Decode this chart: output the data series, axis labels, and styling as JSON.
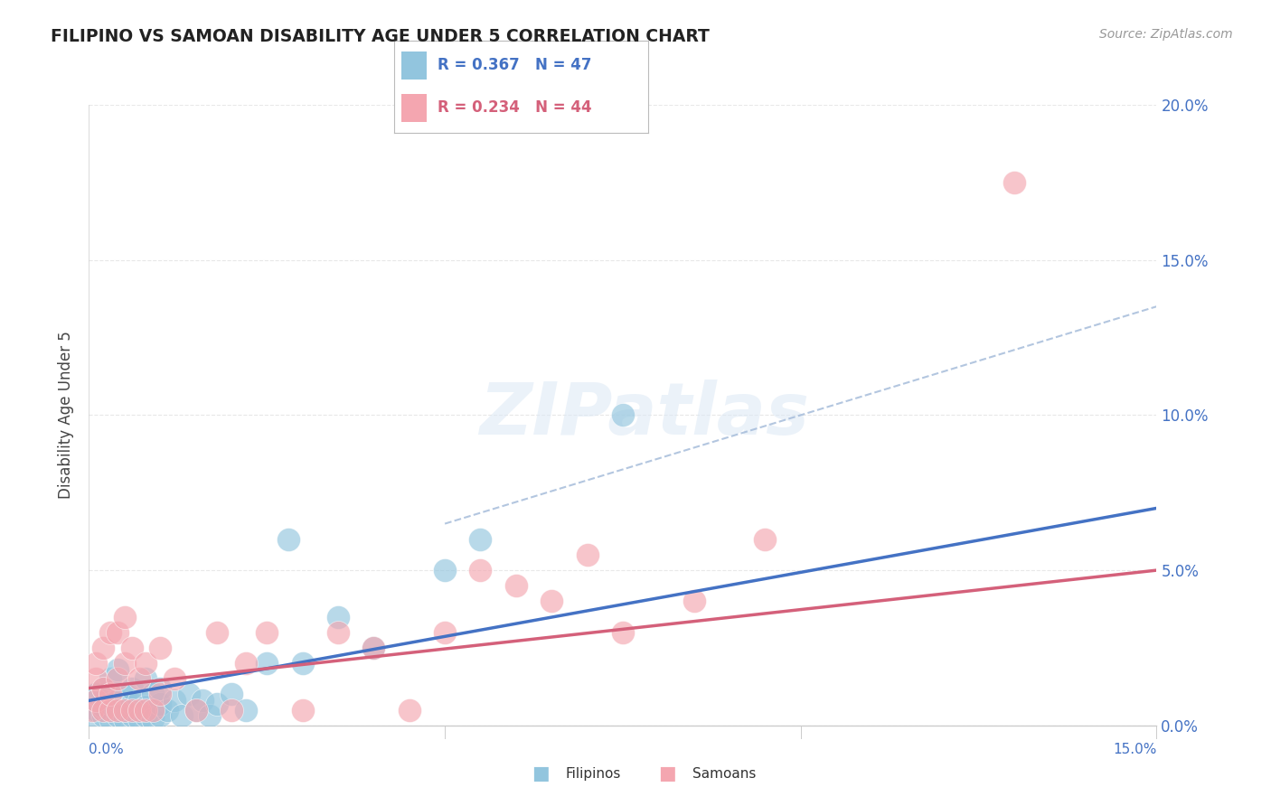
{
  "title": "FILIPINO VS SAMOAN DISABILITY AGE UNDER 5 CORRELATION CHART",
  "source": "Source: ZipAtlas.com",
  "ylabel": "Disability Age Under 5",
  "filipino_R": 0.367,
  "filipino_N": 47,
  "samoan_R": 0.234,
  "samoan_N": 44,
  "filipino_color": "#92c5de",
  "samoan_color": "#f4a6b0",
  "filipino_line_color": "#4472c4",
  "samoan_line_color": "#d4607a",
  "dashed_line_color": "#a0b8d8",
  "background_color": "#ffffff",
  "grid_color": "#e8e8e8",
  "legend_box_color": "#f0f0f0",
  "ytick_color": "#4472c4",
  "xtick_color": "#4472c4",
  "xmin": 0.0,
  "xmax": 0.15,
  "ymin": 0.0,
  "ymax": 0.2,
  "yticks": [
    0.0,
    0.05,
    0.1,
    0.15,
    0.2
  ],
  "ytick_labels": [
    "0.0%",
    "5.0%",
    "10.0%",
    "15.0%",
    "20.0%"
  ],
  "filipino_x": [
    0.0005,
    0.001,
    0.001,
    0.001,
    0.002,
    0.002,
    0.002,
    0.003,
    0.003,
    0.003,
    0.004,
    0.004,
    0.004,
    0.005,
    0.005,
    0.005,
    0.006,
    0.006,
    0.006,
    0.007,
    0.007,
    0.008,
    0.008,
    0.008,
    0.009,
    0.009,
    0.01,
    0.01,
    0.01,
    0.011,
    0.012,
    0.013,
    0.014,
    0.015,
    0.016,
    0.017,
    0.018,
    0.02,
    0.022,
    0.025,
    0.028,
    0.03,
    0.035,
    0.04,
    0.05,
    0.055,
    0.075
  ],
  "filipino_y": [
    0.003,
    0.005,
    0.008,
    0.01,
    0.003,
    0.006,
    0.012,
    0.002,
    0.007,
    0.015,
    0.003,
    0.008,
    0.018,
    0.002,
    0.005,
    0.01,
    0.003,
    0.007,
    0.012,
    0.002,
    0.008,
    0.003,
    0.006,
    0.015,
    0.002,
    0.01,
    0.003,
    0.007,
    0.012,
    0.005,
    0.008,
    0.003,
    0.01,
    0.005,
    0.008,
    0.003,
    0.007,
    0.01,
    0.005,
    0.02,
    0.06,
    0.02,
    0.035,
    0.025,
    0.05,
    0.06,
    0.1
  ],
  "samoan_x": [
    0.0005,
    0.001,
    0.001,
    0.001,
    0.002,
    0.002,
    0.002,
    0.003,
    0.003,
    0.003,
    0.004,
    0.004,
    0.004,
    0.005,
    0.005,
    0.005,
    0.006,
    0.006,
    0.007,
    0.007,
    0.008,
    0.008,
    0.009,
    0.01,
    0.01,
    0.012,
    0.015,
    0.018,
    0.02,
    0.022,
    0.025,
    0.03,
    0.035,
    0.04,
    0.045,
    0.05,
    0.055,
    0.06,
    0.065,
    0.07,
    0.075,
    0.085,
    0.095,
    0.13
  ],
  "samoan_y": [
    0.005,
    0.008,
    0.015,
    0.02,
    0.005,
    0.012,
    0.025,
    0.005,
    0.01,
    0.03,
    0.005,
    0.015,
    0.03,
    0.005,
    0.02,
    0.035,
    0.005,
    0.025,
    0.005,
    0.015,
    0.005,
    0.02,
    0.005,
    0.01,
    0.025,
    0.015,
    0.005,
    0.03,
    0.005,
    0.02,
    0.03,
    0.005,
    0.03,
    0.025,
    0.005,
    0.03,
    0.05,
    0.045,
    0.04,
    0.055,
    0.03,
    0.04,
    0.06,
    0.175
  ]
}
